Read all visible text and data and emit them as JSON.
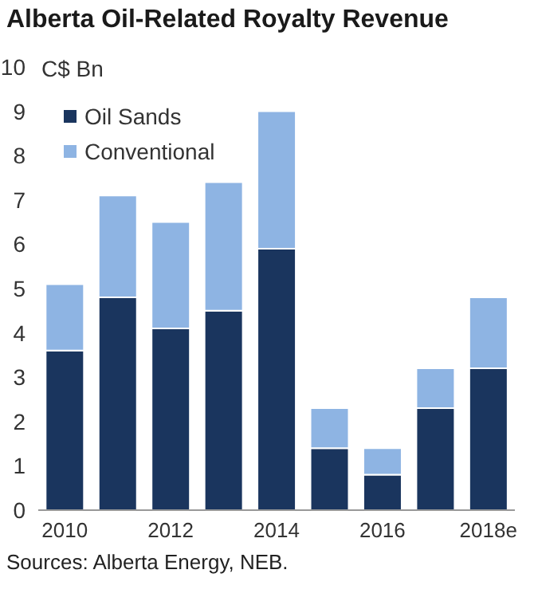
{
  "chart_data": {
    "type": "bar",
    "title": "Alberta Oil-Related Royalty Revenue",
    "ylabel": "C$ Bn",
    "categories": [
      "2010",
      null,
      "2012",
      null,
      "2014",
      null,
      "2016",
      null,
      "2018e"
    ],
    "series": [
      {
        "name": "Oil Sands",
        "color": "#1a355e",
        "values": [
          3.6,
          4.8,
          4.1,
          4.5,
          5.9,
          1.4,
          0.8,
          2.3,
          3.2
        ]
      },
      {
        "name": "Conventional",
        "color": "#8eb4e3",
        "values": [
          1.5,
          2.3,
          2.4,
          2.9,
          3.1,
          0.9,
          0.6,
          0.9,
          1.6
        ]
      }
    ],
    "stacked": true,
    "ylim": [
      0,
      10
    ],
    "yticks": [
      0,
      1,
      2,
      3,
      4,
      5,
      6,
      7,
      8,
      9,
      10
    ],
    "grid": false,
    "legend": "top left",
    "annotations": [
      "Sources: Alberta Energy, NEB."
    ]
  }
}
